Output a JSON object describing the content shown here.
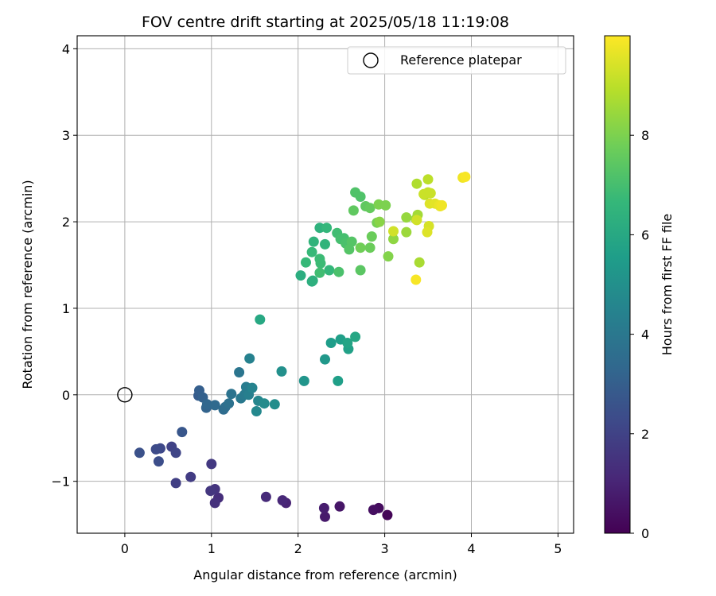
{
  "chart_data": {
    "type": "scatter",
    "title": "FOV centre drift starting at 2025/05/18 11:19:08",
    "xlabel": "Angular distance from reference (arcmin)",
    "ylabel": "Rotation from reference (arcmin)",
    "xlim": [
      -0.55,
      5.18
    ],
    "ylim": [
      -1.6,
      4.15
    ],
    "x_ticks": [
      0,
      1,
      2,
      3,
      4,
      5
    ],
    "y_ticks": [
      -1,
      0,
      1,
      2,
      3,
      4
    ],
    "grid": true,
    "legend": {
      "placement": "top-right",
      "entries": [
        "Reference platepar"
      ]
    },
    "reference_point": {
      "label": "Reference platepar",
      "x": 0,
      "y": 0,
      "marker": "open-circle"
    },
    "colorbar": {
      "label": "Hours from first FF file",
      "range": [
        0,
        10
      ],
      "ticks": [
        0,
        2,
        4,
        6,
        8
      ],
      "colormap": "viridis",
      "stops": [
        "#440154",
        "#482878",
        "#3e4989",
        "#31688e",
        "#26828e",
        "#1f9e89",
        "#35b779",
        "#6ece58",
        "#b5de2b",
        "#fde725"
      ]
    },
    "points": [
      [
        3.03,
        -1.39,
        0.1
      ],
      [
        2.93,
        -1.31,
        0.3
      ],
      [
        2.87,
        -1.33,
        0.4
      ],
      [
        2.48,
        -1.29,
        0.6
      ],
      [
        2.31,
        -1.41,
        0.7
      ],
      [
        2.3,
        -1.31,
        0.8
      ],
      [
        1.86,
        -1.25,
        1.0
      ],
      [
        1.82,
        -1.22,
        1.1
      ],
      [
        1.63,
        -1.18,
        1.2
      ],
      [
        1.08,
        -1.19,
        1.3
      ],
      [
        1.04,
        -1.25,
        1.4
      ],
      [
        1.04,
        -1.09,
        1.5
      ],
      [
        0.99,
        -1.11,
        1.6
      ],
      [
        1.0,
        -0.8,
        1.7
      ],
      [
        0.76,
        -0.95,
        1.8
      ],
      [
        0.59,
        -1.02,
        1.9
      ],
      [
        0.54,
        -0.6,
        2.0
      ],
      [
        0.59,
        -0.67,
        2.1
      ],
      [
        0.41,
        -0.62,
        2.2
      ],
      [
        0.36,
        -0.63,
        2.3
      ],
      [
        0.39,
        -0.77,
        2.4
      ],
      [
        0.17,
        -0.67,
        2.5
      ],
      [
        0.66,
        -0.43,
        2.7
      ],
      [
        0.85,
        -0.01,
        2.9
      ],
      [
        0.86,
        0.05,
        3.0
      ],
      [
        0.9,
        -0.03,
        3.1
      ],
      [
        0.94,
        -0.15,
        3.2
      ],
      [
        0.95,
        -0.11,
        3.3
      ],
      [
        1.04,
        -0.12,
        3.4
      ],
      [
        1.14,
        -0.17,
        3.5
      ],
      [
        1.16,
        -0.14,
        3.6
      ],
      [
        1.2,
        -0.1,
        3.7
      ],
      [
        1.23,
        0.01,
        3.8
      ],
      [
        1.32,
        0.26,
        3.9
      ],
      [
        1.34,
        -0.04,
        4.0
      ],
      [
        1.38,
        0.0,
        4.1
      ],
      [
        1.4,
        0.09,
        4.2
      ],
      [
        1.43,
        0.0,
        4.3
      ],
      [
        1.44,
        0.42,
        4.4
      ],
      [
        1.47,
        0.08,
        4.5
      ],
      [
        1.54,
        -0.07,
        4.6
      ],
      [
        1.52,
        -0.19,
        4.7
      ],
      [
        1.61,
        -0.1,
        4.8
      ],
      [
        1.73,
        -0.11,
        4.9
      ],
      [
        1.81,
        0.27,
        5.0
      ],
      [
        2.07,
        0.16,
        5.2
      ],
      [
        2.31,
        0.41,
        5.3
      ],
      [
        2.38,
        0.6,
        5.5
      ],
      [
        2.49,
        0.64,
        5.6
      ],
      [
        2.46,
        0.16,
        5.6
      ],
      [
        2.58,
        0.53,
        5.7
      ],
      [
        2.57,
        0.6,
        5.8
      ],
      [
        2.66,
        0.67,
        5.9
      ],
      [
        1.56,
        0.87,
        6.0
      ],
      [
        2.03,
        1.38,
        6.2
      ],
      [
        2.16,
        1.31,
        6.2
      ],
      [
        2.17,
        1.32,
        6.3
      ],
      [
        2.25,
        1.93,
        6.4
      ],
      [
        2.18,
        1.77,
        6.5
      ],
      [
        2.31,
        1.74,
        6.5
      ],
      [
        2.33,
        1.93,
        6.6
      ],
      [
        2.36,
        1.44,
        6.6
      ],
      [
        2.09,
        1.53,
        6.7
      ],
      [
        2.16,
        1.65,
        6.7
      ],
      [
        2.25,
        1.57,
        6.8
      ],
      [
        2.26,
        1.52,
        6.8
      ],
      [
        2.25,
        1.41,
        6.9
      ],
      [
        2.45,
        1.87,
        6.9
      ],
      [
        2.49,
        1.8,
        7.0
      ],
      [
        2.53,
        1.81,
        7.0
      ],
      [
        2.55,
        1.75,
        7.1
      ],
      [
        2.47,
        1.42,
        7.1
      ],
      [
        2.66,
        2.34,
        7.2
      ],
      [
        2.72,
        2.29,
        7.2
      ],
      [
        2.62,
        1.77,
        7.3
      ],
      [
        2.59,
        1.68,
        7.3
      ],
      [
        2.72,
        1.44,
        7.4
      ],
      [
        2.64,
        2.13,
        7.5
      ],
      [
        2.78,
        2.18,
        7.5
      ],
      [
        2.83,
        2.16,
        7.6
      ],
      [
        2.85,
        1.83,
        7.7
      ],
      [
        2.83,
        1.7,
        7.7
      ],
      [
        2.72,
        1.7,
        7.8
      ],
      [
        2.91,
        1.99,
        7.9
      ],
      [
        2.93,
        2.2,
        8.0
      ],
      [
        3.01,
        2.19,
        8.0
      ],
      [
        3.04,
        1.6,
        8.1
      ],
      [
        2.94,
        2.0,
        8.2
      ],
      [
        3.1,
        1.8,
        8.3
      ],
      [
        3.25,
        2.05,
        8.4
      ],
      [
        3.25,
        1.88,
        8.5
      ],
      [
        3.36,
        2.03,
        8.5
      ],
      [
        3.38,
        2.08,
        8.6
      ],
      [
        3.4,
        1.53,
        8.7
      ],
      [
        3.37,
        2.44,
        8.8
      ],
      [
        3.46,
        2.31,
        8.9
      ],
      [
        3.5,
        2.49,
        9.0
      ],
      [
        3.5,
        2.34,
        9.1
      ],
      [
        3.45,
        2.32,
        9.2
      ],
      [
        3.53,
        2.33,
        9.2
      ],
      [
        3.1,
        1.89,
        9.3
      ],
      [
        3.37,
        2.02,
        9.3
      ],
      [
        3.51,
        1.95,
        9.4
      ],
      [
        3.49,
        1.88,
        9.5
      ],
      [
        3.52,
        2.21,
        9.5
      ],
      [
        3.58,
        2.21,
        9.6
      ],
      [
        3.63,
        2.19,
        9.7
      ],
      [
        3.64,
        2.18,
        9.7
      ],
      [
        3.66,
        2.19,
        9.8
      ],
      [
        3.9,
        2.51,
        9.8
      ],
      [
        3.93,
        2.52,
        9.9
      ],
      [
        3.36,
        1.33,
        9.9
      ]
    ]
  }
}
